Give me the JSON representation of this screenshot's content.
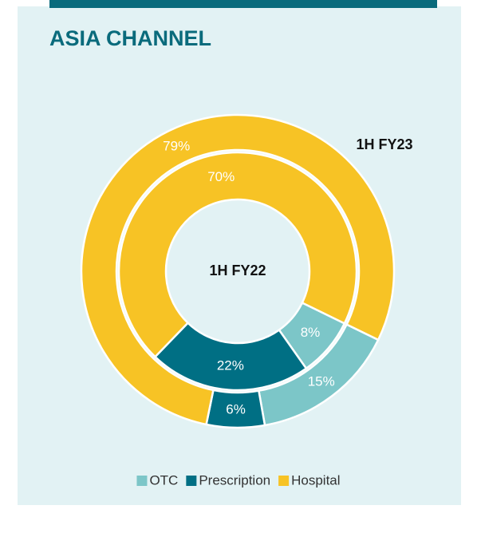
{
  "chart_data": {
    "type": "donut",
    "title": "ASIA CHANNEL",
    "categories": [
      "OTC",
      "Prescription",
      "Hospital"
    ],
    "colors": [
      "#7cc6c8",
      "#006f84",
      "#f7c325"
    ],
    "series": [
      {
        "name": "1H FY23",
        "values": [
          15,
          6,
          79
        ],
        "value_labels": [
          "15%",
          "6%",
          "79%"
        ]
      },
      {
        "name": "1H FY22",
        "values": [
          8,
          22,
          70
        ],
        "value_labels": [
          "8%",
          "22%",
          "70%"
        ]
      }
    ],
    "legend": "bottom"
  }
}
